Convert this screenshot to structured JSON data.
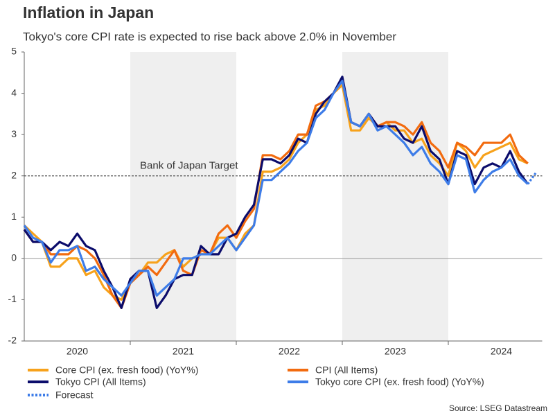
{
  "chart_data": {
    "type": "line",
    "title": "Inflation in Japan",
    "subtitle": "Tokyo's core CPI rate is expected to rise back above 2.0% in November",
    "source": "Source: LSEG Datastream",
    "categories": [
      null,
      null,
      null,
      null,
      null,
      null,
      "2020",
      null,
      null,
      null,
      null,
      null,
      null,
      null,
      null,
      null,
      null,
      null,
      "2021",
      null,
      null,
      null,
      null,
      null,
      null,
      null,
      null,
      null,
      null,
      null,
      "2022",
      null,
      null,
      null,
      null,
      null,
      null,
      null,
      null,
      null,
      null,
      null,
      "2023",
      null,
      null,
      null,
      null,
      null,
      null,
      null,
      null,
      null,
      null,
      null,
      "2024",
      null,
      null,
      null,
      null
    ],
    "ylim": [
      -2,
      5
    ],
    "yticks": [
      -2,
      -1,
      0,
      1,
      2,
      3,
      4,
      5
    ],
    "target": {
      "value": 2,
      "label": "Bank of Japan Target"
    },
    "series": [
      {
        "name": "Core CPI (ex. fresh food) (YoY%)",
        "color": "#f7a21b",
        "style": "solid",
        "values": [
          0.8,
          0.6,
          0.4,
          -0.2,
          -0.2,
          0.0,
          0.0,
          -0.4,
          -0.3,
          -0.7,
          -0.9,
          -1.0,
          -0.6,
          -0.4,
          -0.1,
          -0.1,
          0.1,
          0.2,
          -0.2,
          0.0,
          0.1,
          0.1,
          0.5,
          0.5,
          0.2,
          0.6,
          0.8,
          2.1,
          2.1,
          2.2,
          2.4,
          2.8,
          3.0,
          3.6,
          3.7,
          4.0,
          4.2,
          3.1,
          3.1,
          3.4,
          3.2,
          3.3,
          3.1,
          3.1,
          2.8,
          2.9,
          2.5,
          2.3,
          2.0,
          2.8,
          2.6,
          2.2,
          2.5,
          2.6,
          2.7,
          2.8,
          2.4,
          2.3,
          null
        ]
      },
      {
        "name": "CPI (All Items)",
        "color": "#f26b0f",
        "style": "solid",
        "values": [
          0.7,
          0.4,
          0.4,
          0.1,
          0.1,
          0.1,
          0.3,
          0.2,
          0.0,
          -0.4,
          -0.9,
          -1.2,
          -0.6,
          -0.4,
          -0.2,
          -0.4,
          -0.1,
          0.2,
          -0.3,
          -0.4,
          0.2,
          0.1,
          0.6,
          0.8,
          0.5,
          0.9,
          1.2,
          2.5,
          2.5,
          2.4,
          2.6,
          3.0,
          3.0,
          3.7,
          3.8,
          4.0,
          4.3,
          3.3,
          3.2,
          3.5,
          3.2,
          3.3,
          3.3,
          3.2,
          3.0,
          3.3,
          2.8,
          2.6,
          2.2,
          2.8,
          2.7,
          2.5,
          2.8,
          2.8,
          2.8,
          3.0,
          2.5,
          2.3,
          null
        ]
      },
      {
        "name": "Tokyo CPI (All Items)",
        "color": "#0b0c6b",
        "style": "solid",
        "values": [
          0.7,
          0.4,
          0.4,
          0.2,
          0.4,
          0.3,
          0.6,
          0.3,
          0.2,
          -0.3,
          -0.7,
          -1.2,
          -0.5,
          -0.3,
          -0.3,
          -1.2,
          -0.9,
          -0.5,
          -0.4,
          -0.4,
          0.3,
          0.1,
          0.1,
          0.5,
          0.6,
          1.0,
          1.3,
          2.4,
          2.4,
          2.3,
          2.5,
          2.9,
          2.8,
          3.5,
          3.8,
          4.0,
          4.4,
          3.3,
          3.2,
          3.5,
          3.2,
          3.2,
          3.2,
          2.9,
          2.8,
          3.2,
          2.6,
          2.4,
          1.8,
          2.6,
          2.5,
          1.8,
          2.2,
          2.3,
          2.2,
          2.6,
          2.1,
          1.8,
          null
        ]
      },
      {
        "name": "Tokyo core CPI (ex. fresh food) (YoY%)",
        "color": "#3d7ce8",
        "style": "solid",
        "values": [
          0.8,
          0.5,
          0.4,
          -0.1,
          0.2,
          0.2,
          0.3,
          -0.3,
          -0.2,
          -0.5,
          -0.7,
          -0.9,
          -0.6,
          -0.3,
          -0.3,
          -0.9,
          -0.7,
          -0.5,
          0.0,
          0.0,
          0.1,
          0.1,
          0.3,
          0.5,
          0.2,
          0.5,
          0.8,
          1.9,
          1.9,
          2.1,
          2.3,
          2.6,
          2.8,
          3.4,
          3.6,
          4.0,
          4.3,
          3.3,
          3.2,
          3.5,
          3.1,
          3.2,
          3.0,
          2.8,
          2.5,
          2.7,
          2.3,
          2.1,
          1.8,
          2.5,
          2.4,
          1.6,
          1.9,
          2.1,
          2.2,
          2.4,
          2.0,
          1.8,
          null
        ]
      },
      {
        "name": "Forecast",
        "color": "#3d7ce8",
        "style": "dotted",
        "values": [
          null,
          null,
          null,
          null,
          null,
          null,
          null,
          null,
          null,
          null,
          null,
          null,
          null,
          null,
          null,
          null,
          null,
          null,
          null,
          null,
          null,
          null,
          null,
          null,
          null,
          null,
          null,
          null,
          null,
          null,
          null,
          null,
          null,
          null,
          null,
          null,
          null,
          null,
          null,
          null,
          null,
          null,
          null,
          null,
          null,
          null,
          null,
          null,
          null,
          null,
          null,
          null,
          null,
          null,
          null,
          null,
          null,
          1.8,
          2.1
        ]
      }
    ]
  }
}
